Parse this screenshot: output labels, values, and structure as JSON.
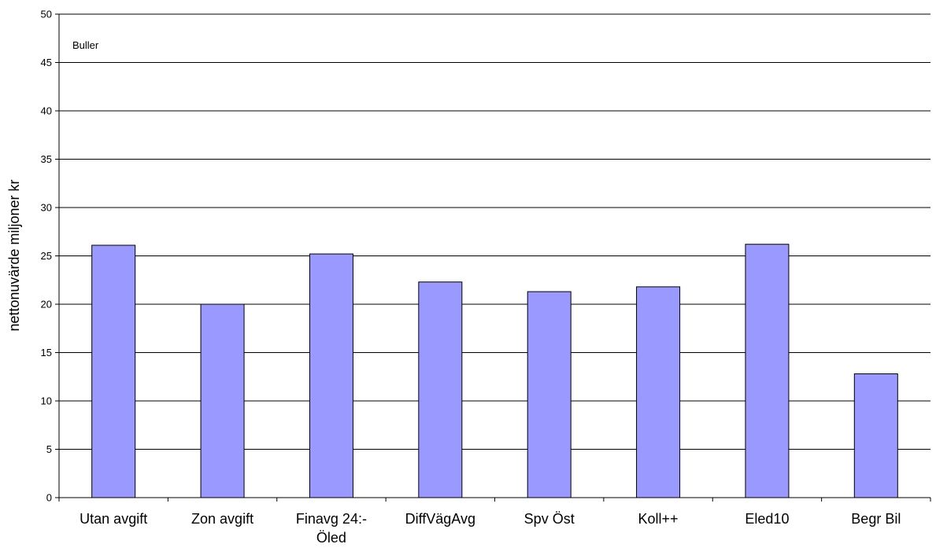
{
  "chart_data": {
    "type": "bar",
    "categories": [
      "Utan avgift",
      "Zon avgift",
      "Finavg 24:- Öled",
      "DiffVägAvg",
      "Spv Öst",
      "Koll++",
      "Eled10",
      "Begr Bil"
    ],
    "category_lines": [
      [
        "Utan avgift"
      ],
      [
        "Zon avgift"
      ],
      [
        "Finavg 24:-",
        "Öled"
      ],
      [
        "DiffVägAvg"
      ],
      [
        "Spv Öst"
      ],
      [
        "Koll++"
      ],
      [
        "Eled10"
      ],
      [
        "Begr Bil"
      ]
    ],
    "values": [
      26.1,
      20.0,
      25.2,
      22.3,
      21.3,
      21.8,
      26.2,
      12.8
    ],
    "ylabel": "nettonuvärde miljoner kr",
    "ylim": [
      0,
      50
    ],
    "yticks": [
      0,
      5,
      10,
      15,
      20,
      25,
      30,
      35,
      40,
      45,
      50
    ],
    "annotation": "Buller",
    "grid": true,
    "bar_color": "#9999ff",
    "bar_border_color": "#000000"
  }
}
